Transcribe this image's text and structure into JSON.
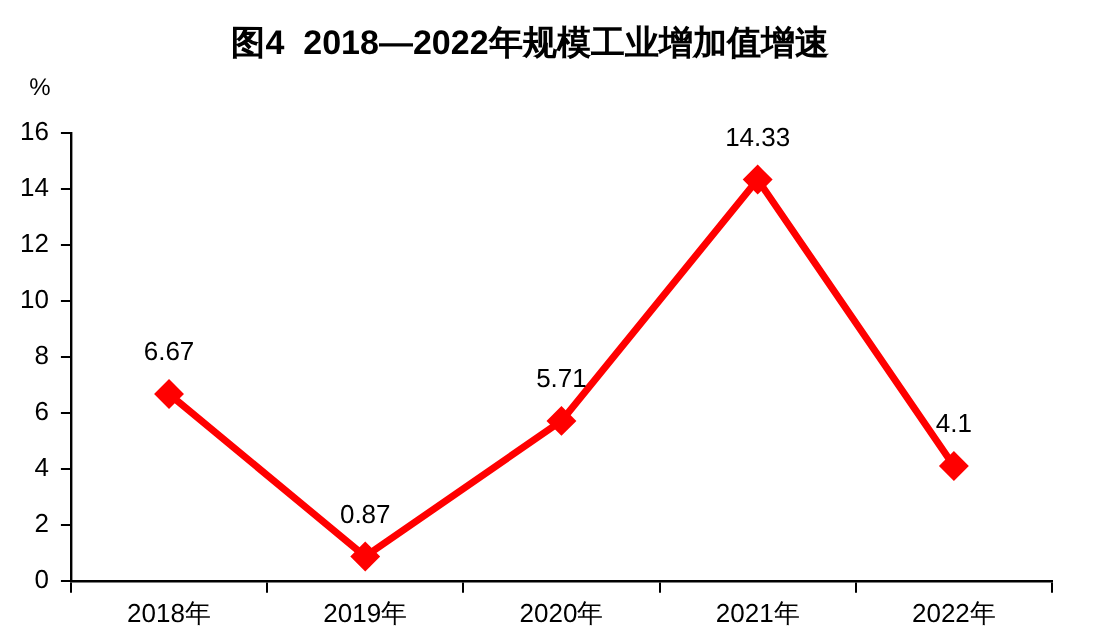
{
  "chart_data": {
    "type": "line",
    "title": "图4  2018—2022年规模工业增加值增速",
    "ylabel": "%",
    "categories": [
      "2018年",
      "2019年",
      "2020年",
      "2021年",
      "2022年"
    ],
    "series": [
      {
        "color": "#ff0000",
        "values": [
          6.67,
          0.87,
          5.71,
          14.33,
          4.1
        ]
      }
    ],
    "ylim": [
      0,
      16
    ],
    "yticks": [
      0,
      2,
      4,
      6,
      8,
      10,
      12,
      14,
      16
    ],
    "grid": false,
    "legend": false,
    "marker": "diamond",
    "line_style": "solid",
    "data_labels": true
  }
}
